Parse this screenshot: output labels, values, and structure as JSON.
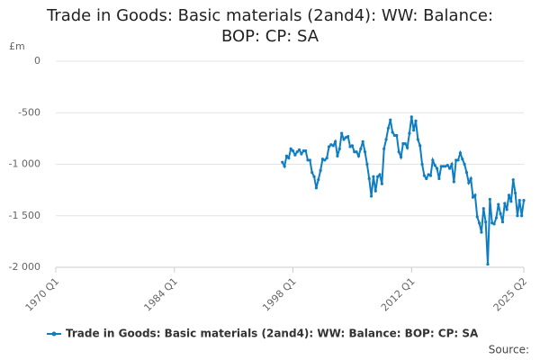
{
  "chart_data": {
    "type": "line",
    "title": "Trade in Goods: Basic materials (2and4): WW: Balance: BOP: CP: SA",
    "y_label": "£m",
    "source": "Source:",
    "x": [
      "1996 Q4",
      "1997 Q1",
      "1997 Q2",
      "1997 Q3",
      "1997 Q4",
      "1998 Q1",
      "1998 Q2",
      "1998 Q3",
      "1998 Q4",
      "1999 Q1",
      "1999 Q2",
      "1999 Q3",
      "1999 Q4",
      "2000 Q1",
      "2000 Q2",
      "2000 Q3",
      "2000 Q4",
      "2001 Q1",
      "2001 Q2",
      "2001 Q3",
      "2001 Q4",
      "2002 Q1",
      "2002 Q2",
      "2002 Q3",
      "2002 Q4",
      "2003 Q1",
      "2003 Q2",
      "2003 Q3",
      "2003 Q4",
      "2004 Q1",
      "2004 Q2",
      "2004 Q3",
      "2004 Q4",
      "2005 Q1",
      "2005 Q2",
      "2005 Q3",
      "2005 Q4",
      "2006 Q1",
      "2006 Q2",
      "2006 Q3",
      "2006 Q4",
      "2007 Q1",
      "2007 Q2",
      "2007 Q3",
      "2007 Q4",
      "2008 Q1",
      "2008 Q2",
      "2008 Q3",
      "2008 Q4",
      "2009 Q1",
      "2009 Q2",
      "2009 Q3",
      "2009 Q4",
      "2010 Q1",
      "2010 Q2",
      "2010 Q3",
      "2010 Q4",
      "2011 Q1",
      "2011 Q2",
      "2011 Q3",
      "2011 Q4",
      "2012 Q1",
      "2012 Q2",
      "2012 Q3",
      "2012 Q4",
      "2013 Q1",
      "2013 Q2",
      "2013 Q3",
      "2013 Q4",
      "2014 Q1",
      "2014 Q2",
      "2014 Q3",
      "2014 Q4",
      "2015 Q1",
      "2015 Q2",
      "2015 Q3",
      "2015 Q4",
      "2016 Q1",
      "2016 Q2",
      "2016 Q3",
      "2016 Q4",
      "2017 Q1",
      "2017 Q2",
      "2017 Q3",
      "2017 Q4",
      "2018 Q1",
      "2018 Q2",
      "2018 Q3",
      "2018 Q4",
      "2019 Q1",
      "2019 Q2",
      "2019 Q3",
      "2019 Q4",
      "2020 Q1",
      "2020 Q2",
      "2020 Q3",
      "2020 Q4",
      "2021 Q1",
      "2021 Q2",
      "2021 Q3",
      "2021 Q4",
      "2022 Q1",
      "2022 Q2",
      "2022 Q3",
      "2022 Q4",
      "2023 Q1",
      "2023 Q2",
      "2023 Q3",
      "2023 Q4",
      "2024 Q1",
      "2024 Q2",
      "2024 Q3",
      "2024 Q4",
      "2025 Q1",
      "2025 Q2"
    ],
    "series": [
      {
        "name": "Trade in Goods: Basic materials (2and4): WW: Balance: BOP: CP: SA",
        "color": "#0f7dc2",
        "values": [
          -980,
          -1020,
          -920,
          -940,
          -850,
          -870,
          -910,
          -880,
          -860,
          -900,
          -870,
          -870,
          -960,
          -960,
          -1080,
          -1120,
          -1230,
          -1150,
          -1060,
          -950,
          -960,
          -940,
          -830,
          -810,
          -820,
          -780,
          -920,
          -850,
          -700,
          -760,
          -740,
          -730,
          -830,
          -820,
          -880,
          -880,
          -920,
          -850,
          -780,
          -880,
          -1000,
          -1140,
          -1310,
          -1120,
          -1260,
          -1120,
          -1100,
          -1190,
          -850,
          -760,
          -650,
          -570,
          -690,
          -720,
          -720,
          -880,
          -930,
          -800,
          -800,
          -840,
          -700,
          -540,
          -670,
          -580,
          -760,
          -820,
          -1000,
          -1110,
          -1140,
          -1100,
          -1110,
          -960,
          -1010,
          -1040,
          -1140,
          -1020,
          -1020,
          -1020,
          -1010,
          -1040,
          -1000,
          -1170,
          -960,
          -960,
          -890,
          -950,
          -1000,
          -1080,
          -1180,
          -1140,
          -1320,
          -1300,
          -1510,
          -1570,
          -1660,
          -1430,
          -1560,
          -1970,
          -1340,
          -1570,
          -1580,
          -1520,
          -1390,
          -1480,
          -1560,
          -1380,
          -1440,
          -1300,
          -1360,
          -1150,
          -1280,
          -1500,
          -1350,
          -1500,
          -1350
        ]
      }
    ],
    "xlim": [
      "1970 Q1",
      "2025 Q2"
    ],
    "xticks": [
      "1970 Q1",
      "1984 Q1",
      "1998 Q1",
      "2012 Q1",
      "2025 Q2"
    ],
    "ylim": [
      -2000,
      0
    ],
    "yticks": [
      {
        "value": -2000,
        "label": "-2 000"
      },
      {
        "value": -1500,
        "label": "-1 500"
      },
      {
        "value": -1000,
        "label": "-1 000"
      },
      {
        "value": -500,
        "label": "-500"
      },
      0
    ],
    "grid": true
  }
}
